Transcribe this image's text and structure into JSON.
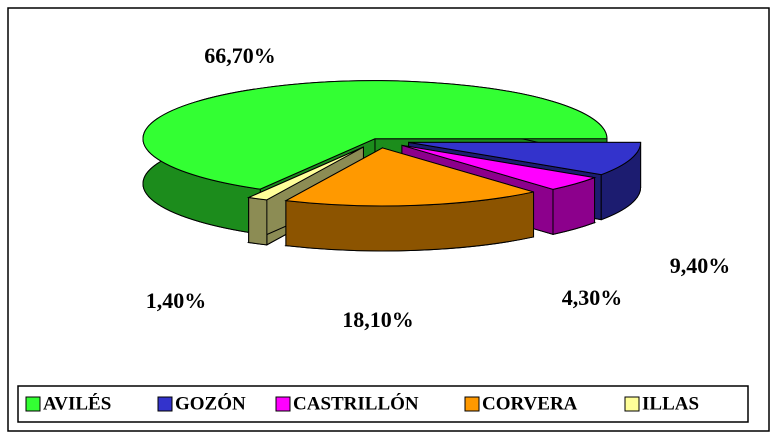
{
  "chart_data": {
    "type": "pie",
    "categories": [
      "AVILÉS",
      "GOZÓN",
      "CASTRILLÓN",
      "CORVERA",
      "ILLAS"
    ],
    "values": [
      66.7,
      9.4,
      4.3,
      18.1,
      1.4
    ],
    "value_labels": [
      "66,70%",
      "9,40%",
      "4,30%",
      "18,10%",
      "1,40%"
    ],
    "colors": [
      "#33ff33",
      "#3333cc",
      "#ff00ff",
      "#ff9900",
      "#ffff99"
    ]
  }
}
